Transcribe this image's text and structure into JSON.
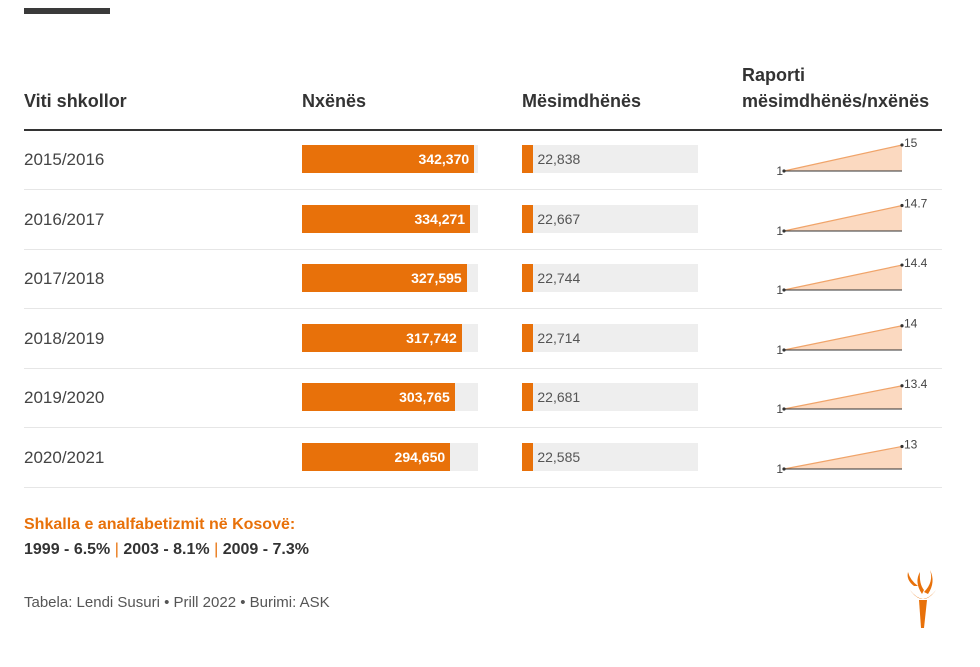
{
  "headers": {
    "year": "Viti shkollor",
    "students": "Nxënës",
    "teachers": "Mësimdhënës",
    "ratio_line1": "Raporti",
    "ratio_line2": "mësimdhënës/nxënës"
  },
  "chart_data": {
    "type": "table",
    "columns": [
      "Viti shkollor",
      "Nxënës",
      "Mësimdhënës",
      "Raporti mësimdhënës/nxënës"
    ],
    "rows": [
      {
        "year": "2015/2016",
        "students": 342370,
        "students_label": "342,370",
        "teachers": 22838,
        "teachers_label": "22,838",
        "ratio_start": "1",
        "ratio": "15"
      },
      {
        "year": "2016/2017",
        "students": 334271,
        "students_label": "334,271",
        "teachers": 22667,
        "teachers_label": "22,667",
        "ratio_start": "1",
        "ratio": "14.7"
      },
      {
        "year": "2017/2018",
        "students": 327595,
        "students_label": "327,595",
        "teachers": 22744,
        "teachers_label": "22,744",
        "ratio_start": "1",
        "ratio": "14.4"
      },
      {
        "year": "2018/2019",
        "students": 317742,
        "students_label": "317,742",
        "teachers": 22714,
        "teachers_label": "22,714",
        "ratio_start": "1",
        "ratio": "14"
      },
      {
        "year": "2019/2020",
        "students": 303765,
        "students_label": "303,765",
        "teachers": 22681,
        "teachers_label": "22,681",
        "ratio_start": "1",
        "ratio": "13.4"
      },
      {
        "year": "2020/2021",
        "students": 294650,
        "students_label": "294,650",
        "teachers": 22585,
        "teachers_label": "22,585",
        "ratio_start": "1",
        "ratio": "13"
      }
    ]
  },
  "note": {
    "title": "Shkalla e analfabetizmit në Kosovë:",
    "items": [
      "1999 - 6.5%",
      "2003 - 8.1%",
      "2009 - 7.3%"
    ],
    "separator": "|"
  },
  "source": "Tabela: Lendi Susuri • Prill 2022 • Burimi: ASK",
  "colors": {
    "accent": "#e8710a",
    "track": "#eeeeee",
    "spark_fill": "#fbd9c0",
    "spark_line": "#f0a46a",
    "text": "#333333"
  },
  "logo_icon": "rferl-torch-logo"
}
